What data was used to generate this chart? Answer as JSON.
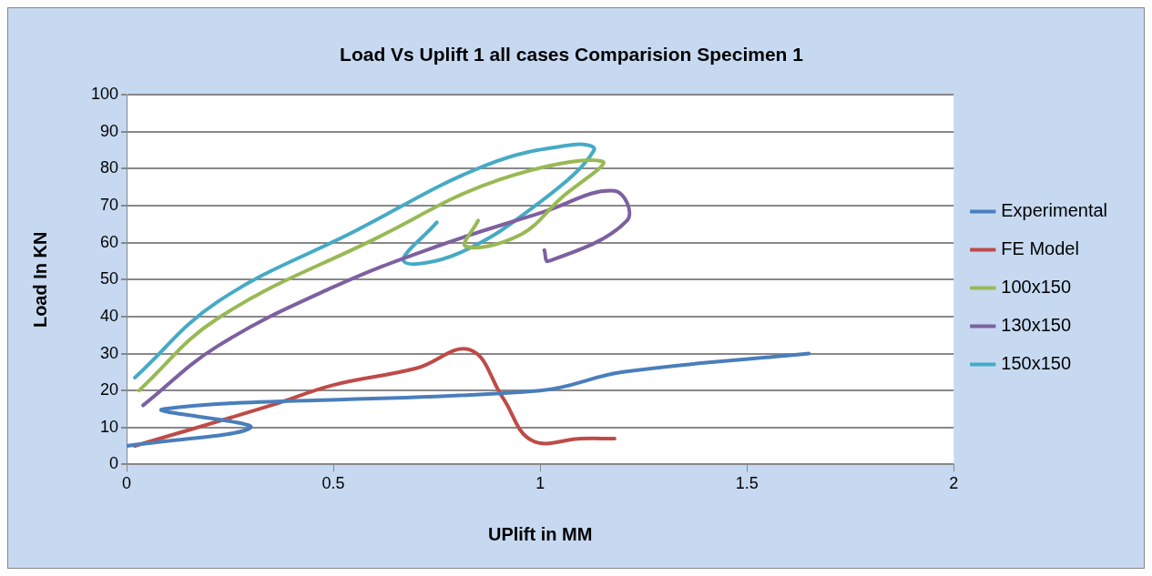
{
  "chart_data": {
    "type": "line",
    "title": "Load Vs Uplift 1 all cases Comparision Specimen 1",
    "xlabel": "UPlift in MM",
    "ylabel": "Load In KN",
    "xlim": [
      0,
      2
    ],
    "xticks": [
      0,
      0.5,
      1,
      1.5,
      2
    ],
    "ylim": [
      0,
      100
    ],
    "yticks": [
      0,
      10,
      20,
      30,
      40,
      50,
      60,
      70,
      80,
      90,
      100
    ],
    "grid": "y",
    "legend": "right",
    "marker": "none",
    "line_style": "solid",
    "series": [
      {
        "name": "Experimental",
        "color": "#4a7ebb",
        "x": [
          0,
          0.3,
          0.09,
          1,
          1.2,
          1.65
        ],
        "values": [
          5,
          10,
          15,
          20,
          25,
          30
        ]
      },
      {
        "name": "FE Model",
        "color": "#be4b48",
        "x": [
          0.02,
          0.35,
          0.5,
          0.7,
          0.83,
          0.91,
          0.98,
          1.1,
          1.18
        ],
        "values": [
          5,
          16,
          21.5,
          26,
          31,
          18,
          6.5,
          7,
          7
        ]
      },
      {
        "name": "100x150",
        "color": "#98b954",
        "x": [
          0.03,
          0.22,
          0.6,
          0.9,
          1.15,
          1.05,
          0.95,
          0.82,
          0.85
        ],
        "values": [
          20,
          39.5,
          61,
          77,
          82,
          72,
          62,
          59,
          66
        ]
      },
      {
        "name": "130x150",
        "color": "#7d60a0",
        "x": [
          0.04,
          0.22,
          0.5,
          0.75,
          1,
          1.18,
          1.21,
          1.02,
          1.01
        ],
        "values": [
          16,
          32,
          48,
          59,
          68,
          74,
          66,
          55,
          58
        ]
      },
      {
        "name": "150x150",
        "color": "#46aac5",
        "x": [
          0.02,
          0.22,
          0.55,
          0.87,
          1.08,
          1.13,
          1,
          0.8,
          0.67,
          0.75
        ],
        "values": [
          23.5,
          44,
          63,
          81,
          86.5,
          85,
          71,
          57,
          55,
          65.5
        ]
      }
    ]
  }
}
